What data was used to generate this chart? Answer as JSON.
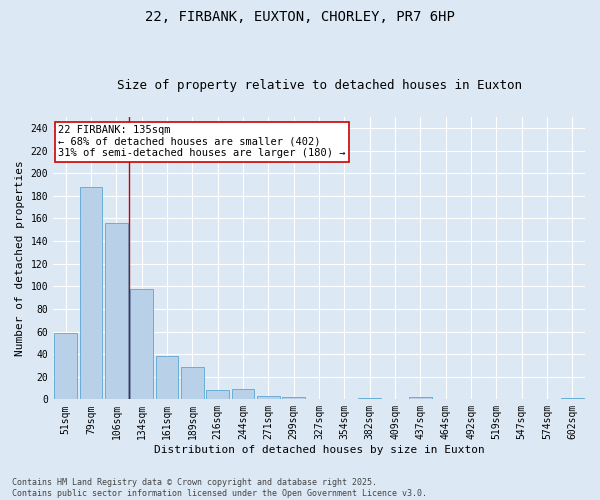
{
  "title": "22, FIRBANK, EUXTON, CHORLEY, PR7 6HP",
  "subtitle": "Size of property relative to detached houses in Euxton",
  "xlabel": "Distribution of detached houses by size in Euxton",
  "ylabel": "Number of detached properties",
  "categories": [
    "51sqm",
    "79sqm",
    "106sqm",
    "134sqm",
    "161sqm",
    "189sqm",
    "216sqm",
    "244sqm",
    "271sqm",
    "299sqm",
    "327sqm",
    "354sqm",
    "382sqm",
    "409sqm",
    "437sqm",
    "464sqm",
    "492sqm",
    "519sqm",
    "547sqm",
    "574sqm",
    "602sqm"
  ],
  "values": [
    59,
    188,
    156,
    98,
    38,
    29,
    8,
    9,
    3,
    2,
    0,
    0,
    1,
    0,
    2,
    0,
    0,
    0,
    0,
    0,
    1
  ],
  "bar_color": "#b8d0e8",
  "bar_edge_color": "#6aaed6",
  "bg_color": "#dce9f5",
  "grid_color": "#ffffff",
  "vline_color": "#cc0000",
  "annotation_text": "22 FIRBANK: 135sqm\n← 68% of detached houses are smaller (402)\n31% of semi-detached houses are larger (180) →",
  "annotation_box_color": "#ffffff",
  "annotation_box_edge_color": "#cc0000",
  "ylim": [
    0,
    250
  ],
  "yticks": [
    0,
    20,
    40,
    60,
    80,
    100,
    120,
    140,
    160,
    180,
    200,
    220,
    240
  ],
  "footer": "Contains HM Land Registry data © Crown copyright and database right 2025.\nContains public sector information licensed under the Open Government Licence v3.0.",
  "title_fontsize": 10,
  "subtitle_fontsize": 9,
  "label_fontsize": 8,
  "tick_fontsize": 7,
  "annotation_fontsize": 7.5,
  "footer_fontsize": 6
}
